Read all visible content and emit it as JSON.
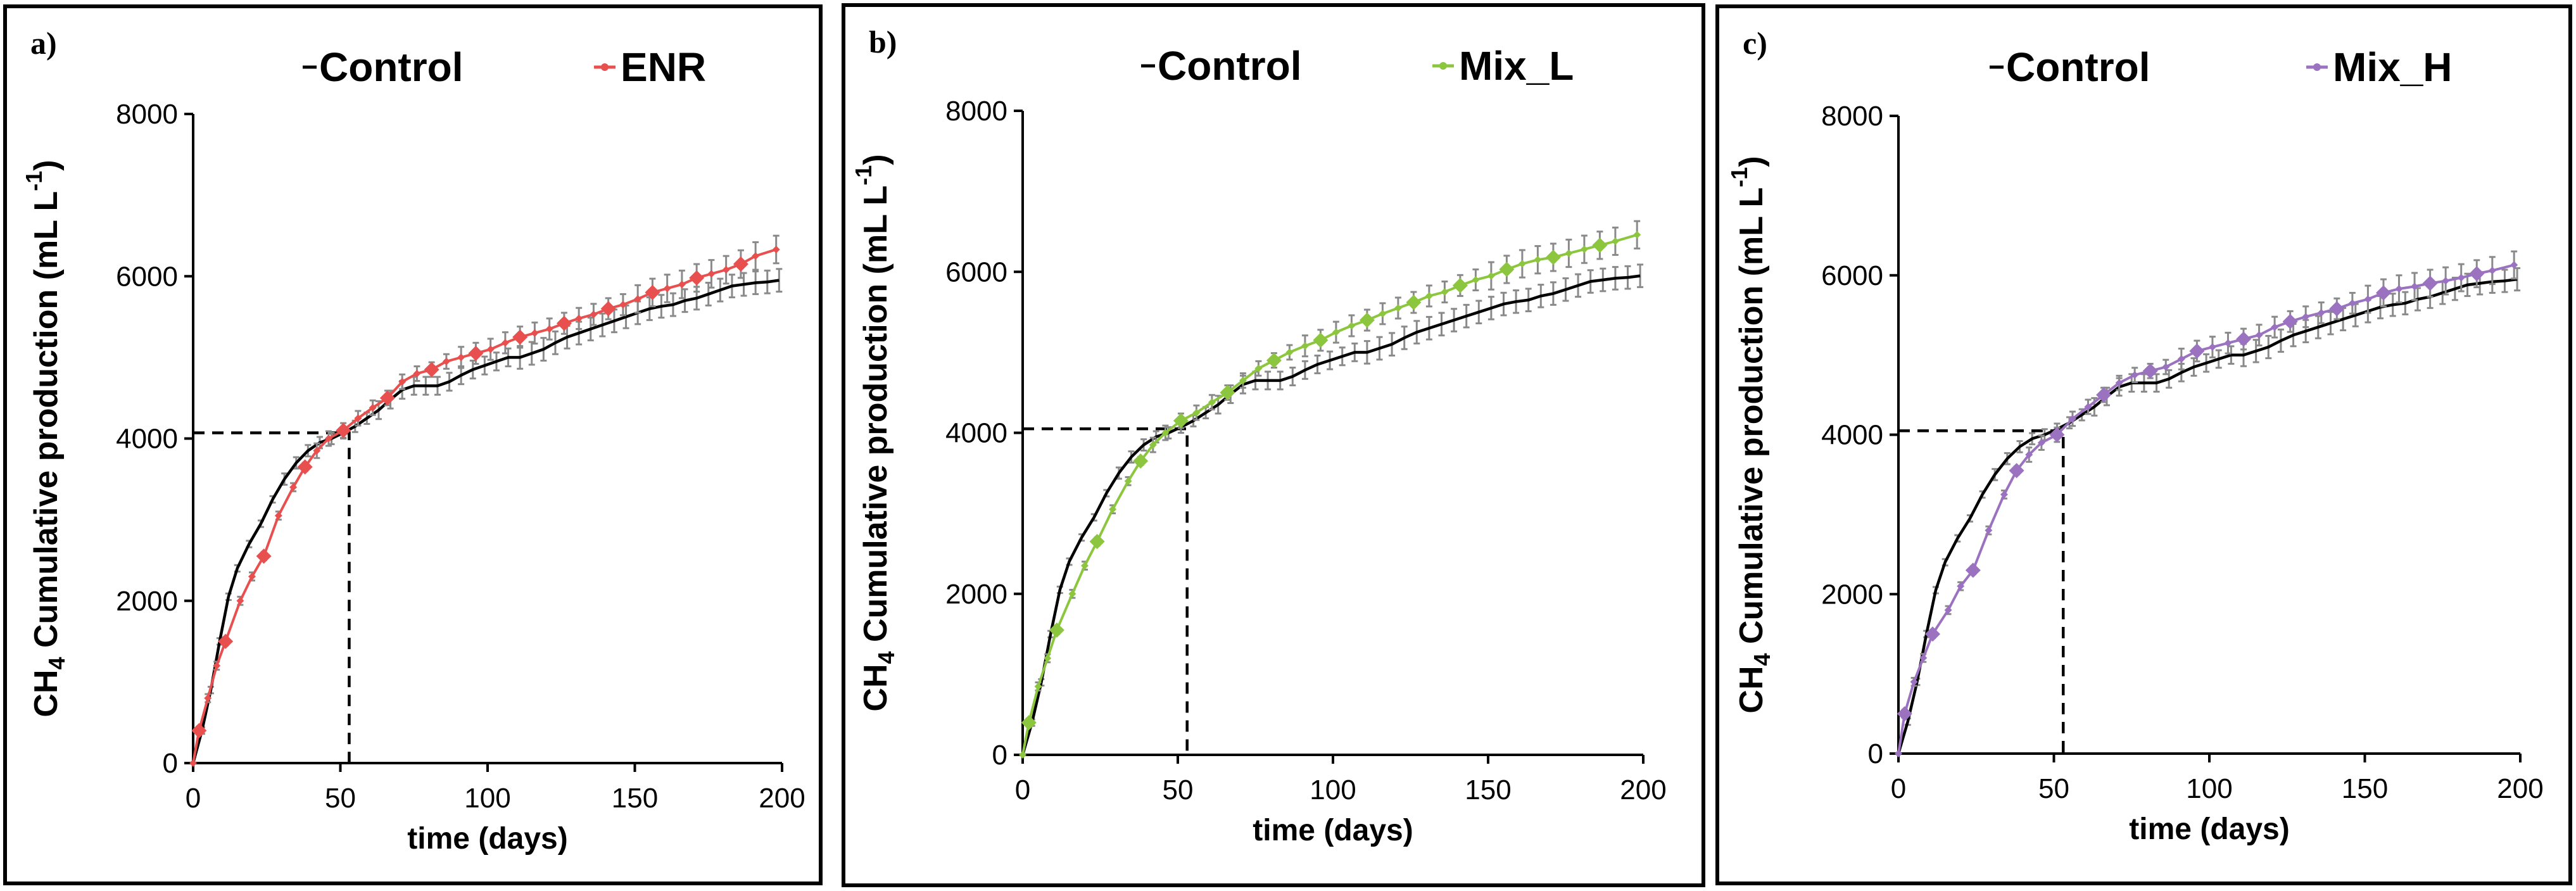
{
  "colors": {
    "control": "#000000",
    "error_bar": "#8a8a8a",
    "ENR": "#e8504f",
    "Mix_L": "#8cc63f",
    "Mix_H": "#9b72c0"
  },
  "chart_data": [
    {
      "type": "line",
      "panel_label": "a)",
      "xlabel": "time (days)",
      "ylabel_main": "CH",
      "ylabel_sub": "4",
      "ylabel_rest": " Cumulative production (mL L",
      "ylabel_sup": "-1",
      "ylabel_close": ")",
      "xlim": [
        0,
        200
      ],
      "ylim": [
        0,
        8000
      ],
      "x_ticks": [
        0,
        50,
        100,
        150,
        200
      ],
      "y_ticks": [
        0,
        2000,
        4000,
        6000,
        8000
      ],
      "x_tick_labels": [
        "0",
        "50",
        "100",
        "150",
        "200"
      ],
      "y_tick_labels": [
        "0",
        "2000",
        "4000",
        "6000",
        "8000"
      ],
      "legend": [
        "Control",
        "ENR"
      ],
      "intersection": {
        "x": 53,
        "y": 4070
      },
      "series": [
        {
          "name": "Control",
          "x": [
            0,
            3,
            6,
            9,
            12,
            15,
            19,
            23,
            27,
            31,
            35,
            39,
            43,
            47,
            51,
            55,
            59,
            63,
            67,
            71,
            75,
            79,
            83,
            87,
            91,
            95,
            99,
            103,
            107,
            111,
            115,
            119,
            123,
            127,
            131,
            135,
            139,
            143,
            147,
            151,
            155,
            159,
            163,
            167,
            171,
            175,
            179,
            183,
            187,
            191,
            195,
            199
          ],
          "y": [
            0,
            400,
            900,
            1500,
            2050,
            2400,
            2700,
            2950,
            3250,
            3500,
            3700,
            3850,
            3950,
            4000,
            4070,
            4150,
            4250,
            4350,
            4480,
            4600,
            4650,
            4650,
            4650,
            4700,
            4780,
            4850,
            4900,
            4950,
            5000,
            5000,
            5050,
            5100,
            5180,
            5250,
            5300,
            5350,
            5400,
            5450,
            5500,
            5550,
            5600,
            5630,
            5650,
            5700,
            5730,
            5780,
            5830,
            5880,
            5900,
            5920,
            5930,
            5950
          ]
        },
        {
          "name": "ENR",
          "x": [
            0,
            2,
            5,
            8,
            11,
            16,
            20,
            24,
            29,
            34,
            38,
            42,
            46,
            51,
            56,
            61,
            66,
            71,
            76,
            81,
            86,
            91,
            96,
            101,
            106,
            111,
            116,
            121,
            126,
            131,
            136,
            141,
            146,
            151,
            156,
            161,
            166,
            171,
            176,
            181,
            186,
            191,
            198
          ],
          "y": [
            0,
            400,
            800,
            1200,
            1500,
            2000,
            2300,
            2550,
            3050,
            3400,
            3650,
            3850,
            4000,
            4100,
            4250,
            4380,
            4500,
            4700,
            4800,
            4850,
            4950,
            5000,
            5050,
            5100,
            5180,
            5250,
            5300,
            5350,
            5420,
            5480,
            5530,
            5600,
            5650,
            5720,
            5800,
            5850,
            5900,
            5980,
            6030,
            6080,
            6150,
            6250,
            6330
          ]
        }
      ]
    },
    {
      "type": "line",
      "panel_label": "b)",
      "xlabel": "time (days)",
      "ylabel_main": "CH",
      "ylabel_sub": "4",
      "ylabel_rest": " Cumulative production (mL L",
      "ylabel_sup": "-1",
      "ylabel_close": ")",
      "xlim": [
        0,
        200
      ],
      "ylim": [
        0,
        8000
      ],
      "x_ticks": [
        0,
        50,
        100,
        150,
        200
      ],
      "y_ticks": [
        0,
        2000,
        4000,
        6000,
        8000
      ],
      "x_tick_labels": [
        "0",
        "50",
        "100",
        "150",
        "200"
      ],
      "y_tick_labels": [
        "0",
        "2000",
        "4000",
        "6000",
        "8000"
      ],
      "legend": [
        "Control",
        "Mix_L"
      ],
      "intersection": {
        "x": 53,
        "y": 4050
      },
      "series": [
        {
          "name": "Control",
          "x": [
            0,
            3,
            6,
            9,
            12,
            15,
            19,
            23,
            27,
            31,
            35,
            39,
            43,
            47,
            51,
            55,
            59,
            63,
            67,
            71,
            75,
            79,
            83,
            87,
            91,
            95,
            99,
            103,
            107,
            111,
            115,
            119,
            123,
            127,
            131,
            135,
            139,
            143,
            147,
            151,
            155,
            159,
            163,
            167,
            171,
            175,
            179,
            183,
            187,
            191,
            195,
            199
          ],
          "y": [
            0,
            400,
            900,
            1500,
            2050,
            2400,
            2700,
            2950,
            3250,
            3500,
            3700,
            3850,
            3950,
            4000,
            4070,
            4150,
            4250,
            4350,
            4480,
            4600,
            4650,
            4650,
            4650,
            4700,
            4780,
            4850,
            4900,
            4950,
            5000,
            5000,
            5050,
            5100,
            5180,
            5250,
            5300,
            5350,
            5400,
            5450,
            5500,
            5550,
            5600,
            5630,
            5650,
            5700,
            5730,
            5780,
            5830,
            5880,
            5900,
            5920,
            5930,
            5950
          ]
        },
        {
          "name": "Mix_L",
          "x": [
            0,
            2,
            5,
            8,
            11,
            16,
            20,
            24,
            29,
            34,
            38,
            42,
            46,
            51,
            56,
            61,
            66,
            71,
            76,
            81,
            86,
            91,
            96,
            101,
            106,
            111,
            116,
            121,
            126,
            131,
            136,
            141,
            146,
            151,
            156,
            161,
            166,
            171,
            176,
            181,
            186,
            191,
            198
          ],
          "y": [
            0,
            400,
            850,
            1200,
            1550,
            2000,
            2350,
            2650,
            3050,
            3400,
            3650,
            3850,
            4000,
            4150,
            4250,
            4380,
            4500,
            4650,
            4800,
            4900,
            5000,
            5080,
            5150,
            5250,
            5330,
            5400,
            5480,
            5550,
            5620,
            5700,
            5750,
            5830,
            5900,
            5950,
            6030,
            6100,
            6150,
            6180,
            6230,
            6280,
            6330,
            6380,
            6460
          ]
        }
      ]
    },
    {
      "type": "line",
      "panel_label": "c)",
      "xlabel": "time (days)",
      "ylabel_main": "CH",
      "ylabel_sub": "4",
      "ylabel_rest": " Cumulative production (mL L",
      "ylabel_sup": "-1",
      "ylabel_close": ")",
      "xlim": [
        0,
        200
      ],
      "ylim": [
        0,
        8000
      ],
      "x_ticks": [
        0,
        50,
        100,
        150,
        200
      ],
      "y_ticks": [
        0,
        2000,
        4000,
        6000,
        8000
      ],
      "x_tick_labels": [
        "0",
        "50",
        "100",
        "150",
        "200"
      ],
      "y_tick_labels": [
        "0",
        "2000",
        "4000",
        "6000",
        "8000"
      ],
      "legend": [
        "Control",
        "Mix_H"
      ],
      "intersection": {
        "x": 53,
        "y": 4050
      },
      "series": [
        {
          "name": "Control",
          "x": [
            0,
            3,
            6,
            9,
            12,
            15,
            19,
            23,
            27,
            31,
            35,
            39,
            43,
            47,
            51,
            55,
            59,
            63,
            67,
            71,
            75,
            79,
            83,
            87,
            91,
            95,
            99,
            103,
            107,
            111,
            115,
            119,
            123,
            127,
            131,
            135,
            139,
            143,
            147,
            151,
            155,
            159,
            163,
            167,
            171,
            175,
            179,
            183,
            187,
            191,
            195,
            199
          ],
          "y": [
            0,
            400,
            900,
            1500,
            2050,
            2400,
            2700,
            2950,
            3250,
            3500,
            3700,
            3850,
            3950,
            4000,
            4070,
            4150,
            4250,
            4350,
            4480,
            4600,
            4650,
            4650,
            4650,
            4700,
            4780,
            4850,
            4900,
            4950,
            5000,
            5000,
            5050,
            5100,
            5180,
            5250,
            5300,
            5350,
            5400,
            5450,
            5500,
            5550,
            5600,
            5630,
            5650,
            5700,
            5730,
            5780,
            5830,
            5880,
            5900,
            5920,
            5930,
            5950
          ]
        },
        {
          "name": "Mix_H",
          "x": [
            0,
            2,
            5,
            8,
            11,
            16,
            20,
            24,
            29,
            34,
            38,
            42,
            46,
            51,
            56,
            61,
            66,
            71,
            76,
            81,
            86,
            91,
            96,
            101,
            106,
            111,
            116,
            121,
            126,
            131,
            136,
            141,
            146,
            151,
            156,
            161,
            166,
            171,
            176,
            181,
            186,
            191,
            198
          ],
          "y": [
            0,
            500,
            900,
            1200,
            1500,
            1800,
            2100,
            2300,
            2800,
            3250,
            3550,
            3750,
            3900,
            4000,
            4200,
            4350,
            4500,
            4650,
            4750,
            4800,
            4850,
            4950,
            5050,
            5100,
            5150,
            5200,
            5250,
            5350,
            5420,
            5480,
            5530,
            5580,
            5650,
            5700,
            5780,
            5830,
            5860,
            5900,
            5930,
            5970,
            6020,
            6060,
            6130
          ]
        }
      ]
    }
  ]
}
